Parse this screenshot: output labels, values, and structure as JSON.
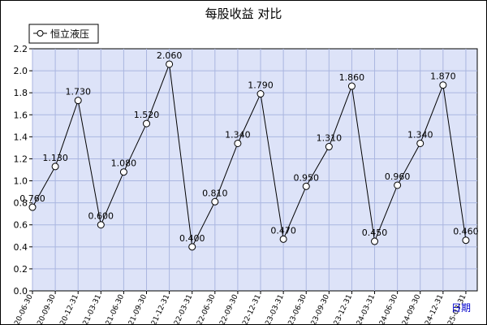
{
  "chart_data": {
    "type": "line",
    "title": "每股收益  对比",
    "xlabel": "日期",
    "ylabel": "",
    "ylim": [
      0,
      2.2
    ],
    "y_ticks": [
      "0.0",
      "0.2",
      "0.4",
      "0.6",
      "0.8",
      "1.0",
      "1.2",
      "1.4",
      "1.6",
      "1.8",
      "2.0",
      "2.2"
    ],
    "grid": true,
    "legend_position": "top-left",
    "x": [
      "2020-06-30",
      "2020-09-30",
      "2020-12-31",
      "2021-03-31",
      "2021-06-30",
      "2021-09-30",
      "2021-12-31",
      "2022-03-31",
      "2022-06-30",
      "2022-09-30",
      "2022-12-31",
      "2023-03-31",
      "2023-06-30",
      "2023-09-30",
      "2023-12-31",
      "2024-03-31",
      "2024-06-30",
      "2024-09-30",
      "2024-12-31",
      "2025-03-31"
    ],
    "series": [
      {
        "name": "恒立液压",
        "values": [
          0.76,
          1.13,
          1.73,
          0.6,
          1.08,
          1.52,
          2.06,
          0.4,
          0.81,
          1.34,
          1.79,
          0.47,
          0.95,
          1.31,
          1.86,
          0.45,
          0.96,
          1.34,
          1.87,
          0.46
        ],
        "labels": [
          "0.760",
          "1.130",
          "1.730",
          "0.600",
          "1.080",
          "1.520",
          "2.060",
          "0.400",
          "0.810",
          "1.340",
          "1.790",
          "0.470",
          "0.950",
          "1.310",
          "1.860",
          "0.450",
          "0.960",
          "1.340",
          "1.870",
          "0.460"
        ]
      }
    ]
  },
  "colors": {
    "background": "#ffffff",
    "plot_background": "#dde3f8",
    "frame": "#000000",
    "grid": "#aab6e0",
    "line": "#000000",
    "xlabel": "#0000cc"
  }
}
